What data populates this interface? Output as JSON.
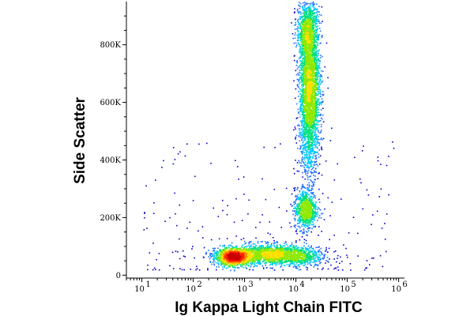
{
  "chart_data": {
    "type": "scatter",
    "subtype": "flow cytometry density dot plot",
    "xlabel": "Ig Kappa Light Chain FITC",
    "ylabel": "Side Scatter",
    "x_scale": "log",
    "xlim": [
      5,
      1300000
    ],
    "ylim": [
      -10000,
      950000
    ],
    "x_ticks": [
      {
        "value": 10,
        "base": "10",
        "exp": "1"
      },
      {
        "value": 100,
        "base": "10",
        "exp": "2"
      },
      {
        "value": 1000,
        "base": "10",
        "exp": "3"
      },
      {
        "value": 10000,
        "base": "10",
        "exp": "4"
      },
      {
        "value": 100000,
        "base": "10",
        "exp": "5"
      },
      {
        "value": 1000000,
        "base": "10",
        "exp": "6"
      }
    ],
    "y_ticks": [
      {
        "value": 0,
        "label": "0"
      },
      {
        "value": 200000,
        "label": "200K"
      },
      {
        "value": 400000,
        "label": "400K"
      },
      {
        "value": 600000,
        "label": "600K"
      },
      {
        "value": 800000,
        "label": "800K"
      }
    ],
    "grid": false,
    "colormap": [
      "#0000cd",
      "#1f6fff",
      "#00c8ff",
      "#00e07a",
      "#8fe800",
      "#ffe000",
      "#ff8c00",
      "#ff2000",
      "#cc0000"
    ],
    "populations": [
      {
        "name": "lymphocytes-kappa-negative",
        "x_center": 600,
        "y_center": 65000,
        "x_spread_log": 0.18,
        "y_spread": 14000,
        "weight": 1500
      },
      {
        "name": "lymphocytes-kappa-positive",
        "x_center": 3000,
        "y_center": 75000,
        "x_spread_log": 0.35,
        "y_spread": 17000,
        "weight": 1400
      },
      {
        "name": "lymphocytes-tail",
        "x_center": 12000,
        "y_center": 65000,
        "x_spread_log": 0.25,
        "y_spread": 16000,
        "weight": 500
      },
      {
        "name": "monocytes",
        "x_center": 15000,
        "y_center": 230000,
        "x_spread_log": 0.11,
        "y_spread": 35000,
        "weight": 800
      },
      {
        "name": "granulocytes",
        "x_center": 18000,
        "y_center": 640000,
        "x_spread_log": 0.1,
        "y_spread": 140000,
        "weight": 3200
      },
      {
        "name": "granulocytes-top",
        "x_center": 16000,
        "y_center": 860000,
        "x_spread_log": 0.1,
        "y_spread": 50000,
        "weight": 700
      }
    ]
  }
}
